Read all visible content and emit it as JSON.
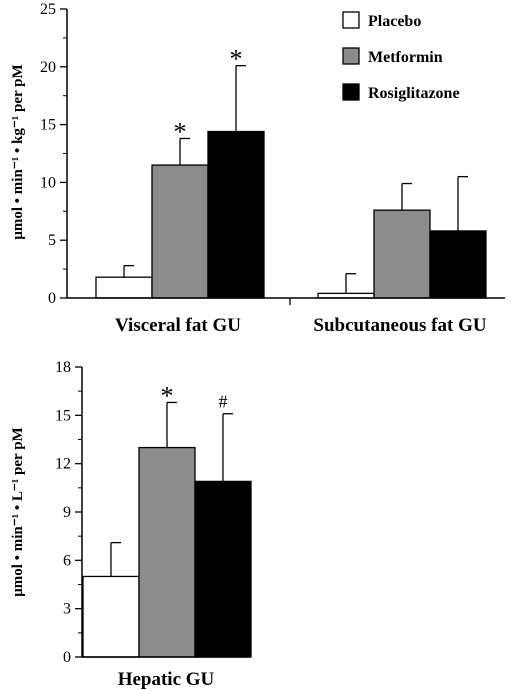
{
  "colors": {
    "Placebo": "#ffffff",
    "Metformin": "#8c8c8c",
    "Rosiglitazone": "#000000"
  },
  "chart_data": [
    {
      "type": "bar",
      "categories": [
        "Visceral fat GU",
        "Subcutaneous fat GU"
      ],
      "series": [
        {
          "name": "Placebo",
          "values": [
            1.8,
            0.4
          ],
          "errors": [
            1.0,
            1.7
          ]
        },
        {
          "name": "Metformin",
          "values": [
            11.5,
            7.6
          ],
          "errors": [
            2.3,
            2.3
          ]
        },
        {
          "name": "Rosiglitazone",
          "values": [
            14.4,
            5.8
          ],
          "errors": [
            5.7,
            4.7
          ]
        }
      ],
      "ylabel": "μmol • min⁻¹ • kg⁻¹ per pM",
      "ylim": [
        0,
        25
      ],
      "yticks": [
        "0",
        "5",
        "10",
        "15",
        "20",
        "25"
      ],
      "legend": [
        "Placebo",
        "Metformin",
        "Rosiglitazone"
      ],
      "legend_position": "top-right",
      "annotations": [
        {
          "category": "Visceral fat GU",
          "series": "Metformin",
          "text": "*"
        },
        {
          "category": "Visceral fat GU",
          "series": "Rosiglitazone",
          "text": "*"
        }
      ],
      "grid": false
    },
    {
      "type": "bar",
      "categories": [
        "Hepatic GU"
      ],
      "series": [
        {
          "name": "Placebo",
          "values": [
            5.0
          ],
          "errors": [
            2.1
          ]
        },
        {
          "name": "Metformin",
          "values": [
            13.0
          ],
          "errors": [
            2.8
          ]
        },
        {
          "name": "Rosiglitazone",
          "values": [
            10.9
          ],
          "errors": [
            4.2
          ]
        }
      ],
      "ylabel": "μmol • min⁻¹ • L⁻¹ per pM",
      "ylim": [
        0,
        18
      ],
      "yticks": [
        "0",
        "3",
        "6",
        "9",
        "12",
        "15",
        "18"
      ],
      "annotations": [
        {
          "category": "Hepatic GU",
          "series": "Metformin",
          "text": "*"
        },
        {
          "category": "Hepatic GU",
          "series": "Rosiglitazone",
          "text": "#"
        }
      ],
      "grid": false
    }
  ]
}
